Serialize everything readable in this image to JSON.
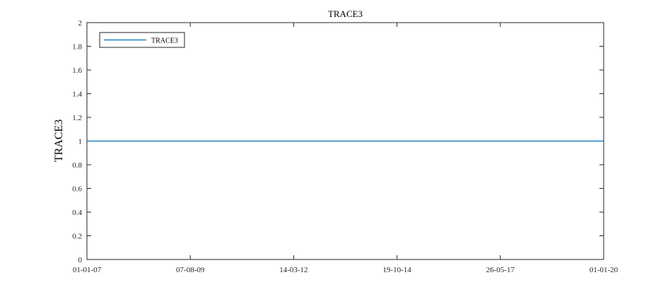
{
  "chart_data": {
    "type": "line",
    "title": "TRACE3",
    "ylabel": "TRACE3",
    "xlabel": "",
    "x_tick_labels": [
      "01-01-07",
      "07-08-09",
      "14-03-12",
      "19-10-14",
      "26-05-17",
      "01-01-20"
    ],
    "y_ticks": [
      0,
      0.2,
      0.4,
      0.6,
      0.8,
      1,
      1.2,
      1.4,
      1.6,
      1.8,
      2
    ],
    "y_tick_labels": [
      "0",
      "0.2",
      "0.4",
      "0.6",
      "0.8",
      "1",
      "1.2",
      "1.4",
      "1.6",
      "1.8",
      "2"
    ],
    "xlim": [
      "2007-01-01",
      "2020-01-01"
    ],
    "ylim": [
      0,
      2
    ],
    "grid": false,
    "legend_position": "top-left",
    "series": [
      {
        "name": "TRACE3",
        "color": "#0072bd",
        "x": [
          "2007-01-01",
          "2020-01-01"
        ],
        "y": [
          1,
          1
        ]
      }
    ]
  }
}
